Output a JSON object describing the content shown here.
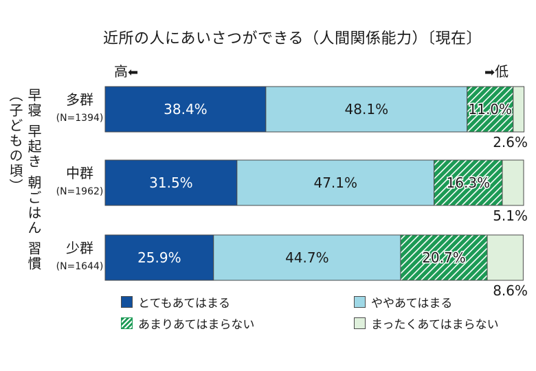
{
  "chart_data": {
    "type": "bar",
    "stacked": true,
    "orientation": "horizontal",
    "normalized_percent": true,
    "title": "近所の人にあいさつができる（人間関係能力）〔現在〕",
    "direction_labels": {
      "high": "高",
      "low": "低"
    },
    "ylabel": "早寝 早起き 朝ごはん 習慣（子どもの頃）",
    "categories": [
      {
        "name": "多群",
        "n": "(N=1394)"
      },
      {
        "name": "中群",
        "n": "(N=1962)"
      },
      {
        "name": "少群",
        "n": "(N=1644)"
      }
    ],
    "series": [
      {
        "name": "とてもあてはまる",
        "color": "#12509c",
        "pattern": "solid",
        "text_color": "#ffffff",
        "values": [
          38.4,
          31.5,
          25.9
        ]
      },
      {
        "name": "ややあてはまる",
        "color": "#9fd8e6",
        "pattern": "solid",
        "text_color": "#1a1a1a",
        "values": [
          48.1,
          47.1,
          44.7
        ]
      },
      {
        "name": "あまりあてはまらない",
        "color": "#1c9a55",
        "pattern": "diagonal-hatch",
        "text_color": "#1a1a1a",
        "values": [
          11.0,
          16.3,
          20.7
        ]
      },
      {
        "name": "まったくあてはまらない",
        "color": "#dff0dc",
        "pattern": "solid",
        "text_color": "#1a1a1a",
        "values": [
          2.6,
          5.1,
          8.6
        ]
      }
    ],
    "xlim": [
      0,
      100
    ],
    "value_suffix": "%",
    "legend_position": "bottom"
  }
}
